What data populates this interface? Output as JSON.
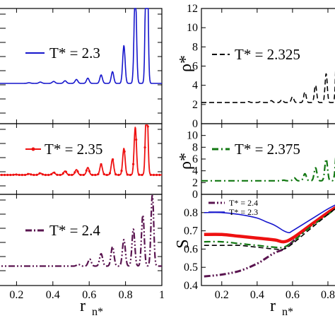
{
  "chart_data": [
    {
      "panel": "left-top",
      "type": "line",
      "xlim": [
        0.1,
        1.0
      ],
      "legend_placement": "center-left",
      "series": [
        {
          "name": "T* = 2.3",
          "color": "#1515cc",
          "dash": "solid",
          "peaks": [
            0.16,
            0.22,
            0.29,
            0.35,
            0.42,
            0.48,
            0.54,
            0.6,
            0.67,
            0.73,
            0.79,
            0.85,
            0.91
          ],
          "heights": [
            0.62,
            0.62,
            0.63,
            0.64,
            0.65,
            0.66,
            0.68,
            0.7,
            0.75,
            0.8,
            1.2,
            2.1,
            3.6
          ]
        }
      ]
    },
    {
      "panel": "left-middle",
      "type": "line",
      "xlim": [
        0.1,
        1.0
      ],
      "legend_placement": "center-left",
      "series": [
        {
          "name": "T* = 2.35",
          "color": "#ee1111",
          "dash": "solid-dots",
          "peaks": [
            0.16,
            0.22,
            0.29,
            0.35,
            0.42,
            0.48,
            0.54,
            0.6,
            0.67,
            0.73,
            0.79,
            0.85,
            0.91
          ],
          "heights": [
            0.55,
            0.56,
            0.58,
            0.6,
            0.62,
            0.66,
            0.7,
            0.76,
            0.85,
            1.0,
            1.3,
            1.9,
            3.0
          ]
        }
      ]
    },
    {
      "panel": "left-bottom",
      "type": "line",
      "xlim": [
        0.1,
        1.0
      ],
      "xlabel": "r",
      "xlabel_sub": "n*",
      "xticks": [
        "0.2",
        "0.4",
        "0.6",
        "0.8",
        "1"
      ],
      "legend_placement": "center-left",
      "series": [
        {
          "name": "T* = 2.4",
          "color": "#5a1550",
          "dash": "dash-dot-dot",
          "peaks": [
            0.55,
            0.61,
            0.67,
            0.73,
            0.79,
            0.84,
            0.89,
            0.94
          ],
          "heights": [
            0.6,
            0.75,
            0.9,
            1.1,
            1.3,
            1.6,
            2.0,
            2.6
          ]
        }
      ]
    },
    {
      "panel": "right-top",
      "type": "line",
      "ylabel": "ρ*",
      "ylim": [
        0,
        12
      ],
      "yticks": [
        "0",
        "2",
        "4",
        "6",
        "8",
        "10",
        "12"
      ],
      "legend_placement": "center-left",
      "series": [
        {
          "name": "T* = 2.325",
          "color": "#000000",
          "dash": "dashed",
          "peaks": [
            0.16,
            0.22,
            0.29,
            0.35,
            0.42,
            0.48,
            0.54,
            0.6,
            0.67,
            0.73,
            0.79,
            0.85
          ],
          "heights": [
            2.2,
            2.2,
            2.2,
            2.3,
            2.3,
            2.4,
            2.5,
            2.8,
            3.3,
            4.0,
            5.2,
            8.2
          ]
        }
      ]
    },
    {
      "panel": "right-middle",
      "type": "line",
      "ylabel": "ρ*",
      "ylim": [
        0,
        12
      ],
      "yticks": [
        "0",
        "2",
        "4",
        "6",
        "8",
        "10"
      ],
      "legend_placement": "center-left",
      "series": [
        {
          "name": "T* = 2.375",
          "color": "#117711",
          "dash": "dash-dot",
          "peaks": [
            0.55,
            0.61,
            0.67,
            0.73,
            0.79,
            0.85
          ],
          "heights": [
            2.4,
            2.8,
            3.5,
            4.5,
            6.0,
            7.8
          ]
        }
      ]
    },
    {
      "panel": "right-bottom",
      "type": "line",
      "ylabel": "S",
      "ylim": [
        0.4,
        0.9
      ],
      "yticks": [
        "0.4",
        "0.5",
        "0.6",
        "0.7",
        "0.8"
      ],
      "xlabel": "r",
      "xlabel_sub": "n*",
      "xticks": [
        "0.2",
        "0.4",
        "0.6",
        "0.8"
      ],
      "xlim": [
        0.1,
        0.88
      ],
      "legend_placement": "top-left",
      "series": [
        {
          "name": "T* = 2.4",
          "color": "#5a1550",
          "dash": "dash-dot-dot",
          "x": [
            0.1,
            0.2,
            0.3,
            0.4,
            0.45,
            0.5,
            0.55,
            0.6,
            0.7,
            0.8,
            0.88
          ],
          "y": [
            0.45,
            0.46,
            0.48,
            0.52,
            0.55,
            0.58,
            0.6,
            0.64,
            0.73,
            0.8,
            0.85
          ]
        },
        {
          "name": "T* = 2.3",
          "color": "#1515cc",
          "dash": "solid",
          "x": [
            0.1,
            0.2,
            0.3,
            0.4,
            0.45,
            0.5,
            0.55,
            0.58,
            0.6,
            0.7,
            0.8,
            0.88
          ],
          "y": [
            0.8,
            0.8,
            0.79,
            0.77,
            0.75,
            0.73,
            0.7,
            0.69,
            0.7,
            0.76,
            0.82,
            0.86
          ]
        },
        {
          "name": "",
          "color": "#ee1111",
          "dash": "solid-thick",
          "x": [
            0.1,
            0.2,
            0.3,
            0.4,
            0.5,
            0.55,
            0.6,
            0.7,
            0.8,
            0.88
          ],
          "y": [
            0.68,
            0.68,
            0.67,
            0.66,
            0.65,
            0.64,
            0.66,
            0.73,
            0.8,
            0.85
          ]
        },
        {
          "name": "",
          "color": "#117711",
          "dash": "dash-dot",
          "x": [
            0.1,
            0.2,
            0.3,
            0.4,
            0.5,
            0.55,
            0.6,
            0.7,
            0.8,
            0.88
          ],
          "y": [
            0.64,
            0.64,
            0.63,
            0.62,
            0.61,
            0.61,
            0.64,
            0.72,
            0.79,
            0.85
          ]
        },
        {
          "name": "",
          "color": "#000000",
          "dash": "dashed",
          "x": [
            0.1,
            0.2,
            0.3,
            0.4,
            0.5,
            0.55,
            0.6,
            0.7,
            0.8,
            0.88
          ],
          "y": [
            0.62,
            0.62,
            0.62,
            0.61,
            0.6,
            0.6,
            0.63,
            0.71,
            0.79,
            0.85
          ]
        }
      ]
    }
  ]
}
